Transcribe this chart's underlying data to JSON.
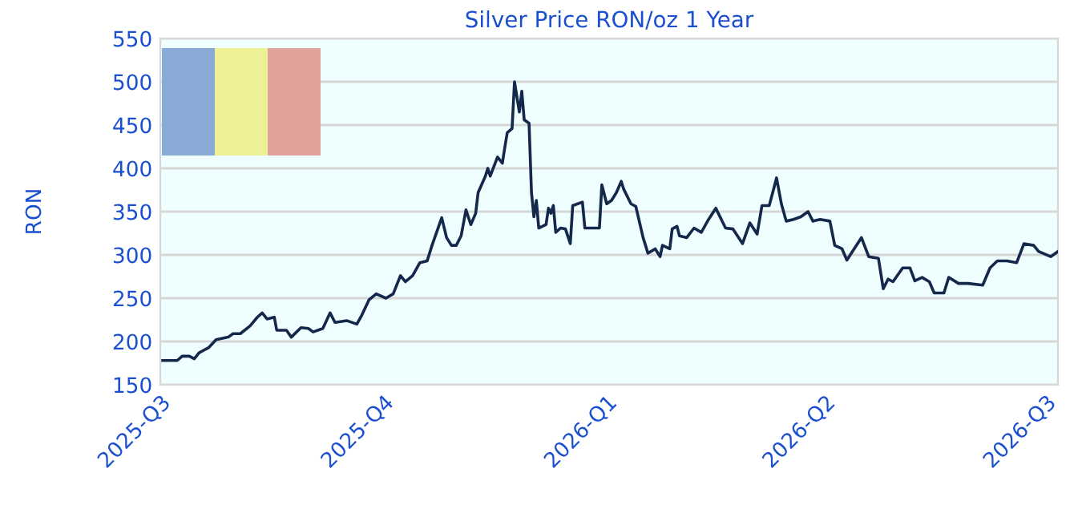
{
  "chart_data": {
    "type": "line",
    "title": "Silver Price RON/oz 1 Year",
    "ylabel": "RON",
    "x": [
      "2025-07-02",
      "2025-07-08",
      "2025-07-10",
      "2025-07-13",
      "2025-07-15",
      "2025-07-17",
      "2025-07-21",
      "2025-07-24",
      "2025-07-29",
      "2025-07-31",
      "2025-08-03",
      "2025-08-07",
      "2025-08-10",
      "2025-08-12",
      "2025-08-14",
      "2025-08-17",
      "2025-08-18",
      "2025-08-22",
      "2025-08-24",
      "2025-08-28",
      "2025-08-31",
      "2025-09-02",
      "2025-09-06",
      "2025-09-09",
      "2025-09-11",
      "2025-09-16",
      "2025-09-20",
      "2025-09-22",
      "2025-09-25",
      "2025-09-28",
      "2025-10-02",
      "2025-10-05",
      "2025-10-08",
      "2025-10-10",
      "2025-10-13",
      "2025-10-16",
      "2025-10-19",
      "2025-10-21",
      "2025-10-25",
      "2025-10-27",
      "2025-10-29",
      "2025-10-31",
      "2025-11-02",
      "2025-11-04",
      "2025-11-06",
      "2025-11-08",
      "2025-11-09",
      "2025-11-12",
      "2025-11-13",
      "2025-11-14",
      "2025-11-17",
      "2025-11-19",
      "2025-11-20",
      "2025-11-21",
      "2025-11-23",
      "2025-11-24",
      "2025-11-26",
      "2025-11-27",
      "2025-11-28",
      "2025-11-30",
      "2025-12-01",
      "2025-12-02",
      "2025-12-03",
      "2025-12-04",
      "2025-12-07",
      "2025-12-08",
      "2025-12-09",
      "2025-12-10",
      "2025-12-11",
      "2025-12-13",
      "2025-12-15",
      "2025-12-17",
      "2025-12-18",
      "2025-12-22",
      "2025-12-23",
      "2025-12-29",
      "2025-12-30",
      "2026-01-01",
      "2026-01-03",
      "2026-01-05",
      "2026-01-07",
      "2026-01-08",
      "2026-01-11",
      "2026-01-13",
      "2026-01-16",
      "2026-01-18",
      "2026-01-21",
      "2026-01-23",
      "2026-01-24",
      "2026-01-27",
      "2026-01-28",
      "2026-01-30",
      "2026-01-31",
      "2026-02-03",
      "2026-02-06",
      "2026-02-09",
      "2026-02-12",
      "2026-02-15",
      "2026-02-16",
      "2026-02-19",
      "2026-02-22",
      "2026-02-26",
      "2026-03-01",
      "2026-03-04",
      "2026-03-06",
      "2026-03-09",
      "2026-03-11",
      "2026-03-12",
      "2026-03-14",
      "2026-03-16",
      "2026-03-19",
      "2026-03-22",
      "2026-03-25",
      "2026-03-27",
      "2026-03-30",
      "2026-04-03",
      "2026-04-05",
      "2026-04-08",
      "2026-04-10",
      "2026-04-13",
      "2026-04-16",
      "2026-04-19",
      "2026-04-23",
      "2026-04-25",
      "2026-04-27",
      "2026-04-29",
      "2026-05-03",
      "2026-05-06",
      "2026-05-08",
      "2026-05-11",
      "2026-05-14",
      "2026-05-16",
      "2026-05-20",
      "2026-05-22",
      "2026-05-26",
      "2026-05-30",
      "2026-06-05",
      "2026-06-08",
      "2026-06-11",
      "2026-06-15",
      "2026-06-19",
      "2026-06-22",
      "2026-06-26",
      "2026-06-28",
      "2026-07-03",
      "2026-07-06"
    ],
    "series": [
      {
        "color": "#14284b",
        "values": [
          178,
          178,
          183,
          183,
          180,
          187,
          193,
          202,
          205,
          209,
          209,
          218,
          228,
          233,
          226,
          228,
          213,
          213,
          205,
          216,
          215,
          211,
          215,
          233,
          222,
          224,
          220,
          230,
          248,
          255,
          250,
          255,
          276,
          269,
          276,
          291,
          293,
          311,
          343,
          320,
          311,
          311,
          322,
          352,
          335,
          348,
          372,
          391,
          400,
          391,
          413,
          406,
          424,
          441,
          446,
          500,
          465,
          489,
          456,
          452,
          372,
          344,
          363,
          331,
          335,
          354,
          348,
          357,
          326,
          331,
          330,
          313,
          357,
          361,
          331,
          331,
          381,
          359,
          363,
          372,
          385,
          376,
          359,
          356,
          320,
          302,
          307,
          298,
          311,
          307,
          330,
          333,
          322,
          320,
          331,
          326,
          341,
          354,
          348,
          331,
          330,
          313,
          337,
          324,
          357,
          357,
          378,
          389,
          359,
          339,
          341,
          344,
          350,
          339,
          341,
          339,
          311,
          307,
          294,
          307,
          320,
          298,
          296,
          261,
          272,
          269,
          285,
          285,
          270,
          274,
          269,
          256,
          256,
          274,
          267,
          267,
          265,
          285,
          293,
          293,
          291,
          313,
          311,
          304,
          298,
          304
        ]
      }
    ],
    "xlim": [
      "2025-07-01",
      "2026-07-06"
    ],
    "xticks": [
      {
        "value": "2025-07-01",
        "label": "2025-Q3"
      },
      {
        "value": "2025-10-01",
        "label": "2025-Q4"
      },
      {
        "value": "2026-01-01",
        "label": "2026-Q1"
      },
      {
        "value": "2026-04-01",
        "label": "2026-Q2"
      },
      {
        "value": "2026-07-01",
        "label": "2026-Q3"
      }
    ],
    "ylim": [
      150,
      550
    ],
    "yticks": [
      150,
      200,
      250,
      300,
      350,
      400,
      450,
      500,
      550
    ],
    "grid": "y",
    "line_style": "solid",
    "marker": "none"
  }
}
